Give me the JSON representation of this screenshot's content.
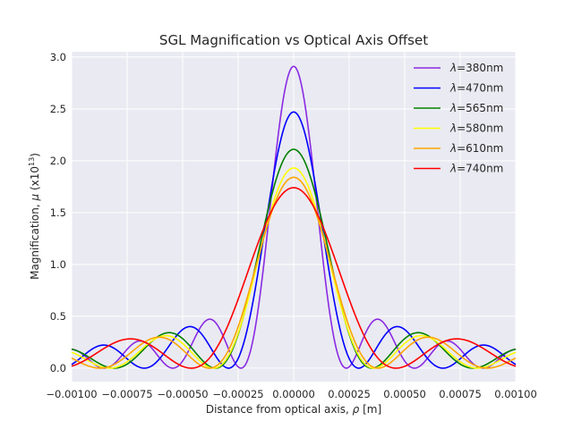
{
  "chart_data": {
    "type": "line",
    "title": "SGL Magnification vs Optical Axis Offset",
    "xlabel_prefix": "Distance from optical axis, ",
    "xlabel_symbol": "ρ",
    "xlabel_suffix": " [m]",
    "ylabel_prefix": "Magnification, ",
    "ylabel_symbol": "μ",
    "ylabel_unit_open": " (x10",
    "ylabel_unit_exp": "13",
    "ylabel_unit_close": ")",
    "xlim": [
      -0.001,
      0.001
    ],
    "ylim": [
      -0.13,
      3.05
    ],
    "grid": true,
    "legend_position": "top-right",
    "legend_symbol": "λ",
    "x_ticks": [
      -0.001,
      -0.00075,
      -0.0005,
      -0.00025,
      0.0,
      0.00025,
      0.0005,
      0.00075,
      0.001
    ],
    "x_tick_labels": [
      "−0.00100",
      "−0.00075",
      "−0.00050",
      "−0.00025",
      "0.00000",
      "0.00025",
      "0.00050",
      "0.00075",
      "0.00100"
    ],
    "y_ticks": [
      0.0,
      0.5,
      1.0,
      1.5,
      2.0,
      2.5,
      3.0
    ],
    "y_tick_labels": [
      "0.0",
      "0.5",
      "1.0",
      "1.5",
      "2.0",
      "2.5",
      "3.0"
    ],
    "series": [
      {
        "name": "=380nm",
        "color": "#8a2be2",
        "wavelength_nm": 380,
        "peak": 2.91,
        "first_zero": 0.000237
      },
      {
        "name": "=470nm",
        "color": "#0000ff",
        "wavelength_nm": 470,
        "peak": 2.47,
        "first_zero": 0.000293
      },
      {
        "name": "=565nm",
        "color": "#008000",
        "wavelength_nm": 565,
        "peak": 2.11,
        "first_zero": 0.000352
      },
      {
        "name": "=580nm",
        "color": "#ffff00",
        "wavelength_nm": 580,
        "peak": 1.93,
        "first_zero": 0.000361
      },
      {
        "name": "=610nm",
        "color": "#ffa500",
        "wavelength_nm": 610,
        "peak": 1.84,
        "first_zero": 0.00038
      },
      {
        "name": "=740nm",
        "color": "#ff0000",
        "wavelength_nm": 740,
        "peak": 1.74,
        "first_zero": 0.000461
      }
    ]
  }
}
